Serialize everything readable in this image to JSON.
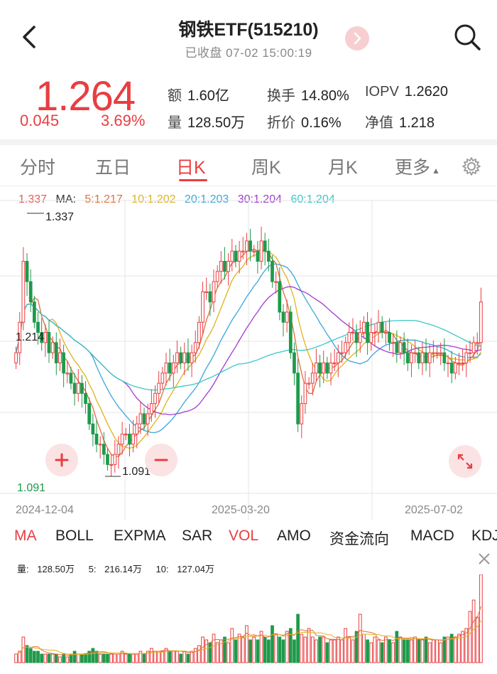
{
  "header": {
    "title": "钢铁ETF(515210)",
    "subtitle": "已收盘 07-02 15:00:19"
  },
  "quote": {
    "price": "1.264",
    "change": "0.045",
    "change_pct": "3.69%",
    "items": [
      {
        "k": "额",
        "v": "1.60亿"
      },
      {
        "k": "换手",
        "v": "14.80%"
      },
      {
        "k": "IOPV",
        "v": "1.2620"
      },
      {
        "k": "量",
        "v": "128.50万"
      },
      {
        "k": "折价",
        "v": "0.16%"
      },
      {
        "k": "净值",
        "v": "1.218"
      }
    ]
  },
  "tabs": [
    "分时",
    "五日",
    "日K",
    "周K",
    "月K",
    "更多"
  ],
  "active_tab": "日K",
  "ma_legend": [
    {
      "label": "1.337",
      "color": "#e85a5a"
    },
    {
      "label": "MA:",
      "color": "#333333"
    },
    {
      "label": "5:1.217",
      "color": "#e0703a"
    },
    {
      "label": "10:1.202",
      "color": "#e0b21c"
    },
    {
      "label": "20:1.203",
      "color": "#3aa6dc"
    },
    {
      "label": "30:1.204",
      "color": "#a23ad0"
    },
    {
      "label": "60:1.204",
      "color": "#38c8c8"
    }
  ],
  "indicators": [
    "MA",
    "BOLL",
    "EXPMA",
    "SAR",
    "VOL",
    "AMO",
    "资金流向",
    "MACD",
    "KDJ"
  ],
  "active_indicators": [
    "MA",
    "VOL"
  ],
  "volume_legend": [
    {
      "label": "量:",
      "value": "128.50万"
    },
    {
      "label": "5:",
      "value": "216.14万"
    },
    {
      "label": "10:",
      "value": "127.04万"
    }
  ],
  "colors": {
    "up": "#e83e41",
    "down": "#1e9a4a",
    "ma5": "#e0703a",
    "ma10": "#e0b21c",
    "ma20": "#3aa6dc",
    "ma30": "#a23ad0",
    "ma60": "#38c8c8",
    "grid": "#e6e6e6"
  },
  "chart_data": {
    "type": "candlestick",
    "title": "钢铁ETF(515210)",
    "x_tick_labels": [
      "2024-12-04",
      "2025-03-20",
      "2025-07-02"
    ],
    "price_labels": {
      "high": "1.337",
      "mid": "1.214",
      "low": "1.091",
      "axis_min": "1.091"
    },
    "ylim": [
      1.08,
      1.35
    ],
    "close": [
      1.21,
      1.24,
      1.3,
      1.28,
      1.26,
      1.24,
      1.23,
      1.22,
      1.23,
      1.21,
      1.22,
      1.2,
      1.21,
      1.19,
      1.19,
      1.18,
      1.17,
      1.18,
      1.17,
      1.16,
      1.14,
      1.13,
      1.12,
      1.12,
      1.11,
      1.1,
      1.1,
      1.11,
      1.12,
      1.13,
      1.13,
      1.12,
      1.13,
      1.14,
      1.15,
      1.14,
      1.15,
      1.16,
      1.17,
      1.18,
      1.19,
      1.2,
      1.19,
      1.2,
      1.21,
      1.2,
      1.21,
      1.2,
      1.21,
      1.22,
      1.24,
      1.27,
      1.27,
      1.26,
      1.28,
      1.29,
      1.3,
      1.29,
      1.3,
      1.31,
      1.3,
      1.31,
      1.31,
      1.32,
      1.31,
      1.31,
      1.3,
      1.32,
      1.31,
      1.3,
      1.28,
      1.28,
      1.25,
      1.24,
      1.25,
      1.21,
      1.19,
      1.14,
      1.16,
      1.18,
      1.18,
      1.19,
      1.2,
      1.19,
      1.2,
      1.19,
      1.2,
      1.2,
      1.21,
      1.21,
      1.22,
      1.23,
      1.23,
      1.22,
      1.23,
      1.24,
      1.22,
      1.23,
      1.23,
      1.24,
      1.23,
      1.23,
      1.22,
      1.22,
      1.21,
      1.22,
      1.21,
      1.2,
      1.21,
      1.21,
      1.2,
      1.21,
      1.2,
      1.21,
      1.21,
      1.21,
      1.21,
      1.2,
      1.2,
      1.19,
      1.2,
      1.2,
      1.2,
      1.21,
      1.21,
      1.22,
      1.22,
      1.26
    ],
    "volume": [
      3,
      4,
      9,
      6,
      5,
      4,
      4,
      3,
      3,
      3,
      3,
      3,
      2,
      3,
      2,
      3,
      4,
      3,
      3,
      3,
      4,
      5,
      4,
      3,
      3,
      3,
      3,
      3,
      3,
      4,
      3,
      3,
      3,
      3,
      4,
      3,
      4,
      5,
      4,
      4,
      4,
      5,
      4,
      4,
      4,
      3,
      4,
      3,
      4,
      5,
      6,
      9,
      8,
      7,
      10,
      7,
      8,
      9,
      7,
      12,
      8,
      10,
      9,
      13,
      8,
      9,
      8,
      11,
      9,
      8,
      13,
      10,
      9,
      8,
      11,
      12,
      8,
      17,
      10,
      9,
      12,
      9,
      8,
      9,
      9,
      7,
      8,
      8,
      9,
      8,
      12,
      9,
      8,
      11,
      17,
      10,
      8,
      7,
      9,
      8,
      7,
      9,
      8,
      7,
      11,
      9,
      8,
      8,
      8,
      9,
      8,
      8,
      9,
      7,
      8,
      8,
      7,
      9,
      9,
      10,
      9,
      10,
      11,
      12,
      18,
      22,
      16,
      31
    ]
  }
}
